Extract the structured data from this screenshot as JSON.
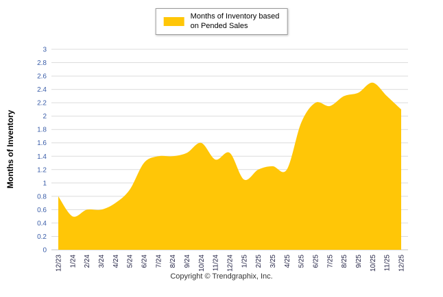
{
  "legend": {
    "line1": "Months of Inventory based",
    "line2": "on Pended Sales"
  },
  "footer": {
    "copyright": "Copyright © Trendgraphix, Inc."
  },
  "chart_data": {
    "type": "area",
    "title": "",
    "ylabel": "Months of Inventory",
    "xlabel": "",
    "ylim": [
      0,
      3
    ],
    "ytick_step": 0.2,
    "grid": true,
    "legend_position": "top-center",
    "legend_entries": [
      "Months of Inventory based on Pended Sales"
    ],
    "categories": [
      "12/23",
      "1/24",
      "2/24",
      "3/24",
      "4/24",
      "5/24",
      "6/24",
      "7/24",
      "8/24",
      "9/24",
      "10/24",
      "11/24",
      "12/24",
      "1/25",
      "2/25",
      "3/25",
      "4/25",
      "5/25",
      "6/25",
      "7/25",
      "8/25",
      "9/25",
      "10/25",
      "11/25",
      "12/25"
    ],
    "series": [
      {
        "name": "Months of Inventory based on Pended Sales",
        "values": [
          0.8,
          0.5,
          0.6,
          0.6,
          0.7,
          0.9,
          1.3,
          1.4,
          1.4,
          1.45,
          1.6,
          1.35,
          1.45,
          1.05,
          1.2,
          1.25,
          1.2,
          1.9,
          2.2,
          2.15,
          2.3,
          2.35,
          2.5,
          2.3,
          2.1
        ]
      }
    ],
    "colors": {
      "fill": "#FFC607",
      "grid": "#DCDCDC",
      "axis_line": "#C0C0C0",
      "y_tick_label": "#3A5DA8",
      "x_tick_label": "#222244"
    }
  }
}
